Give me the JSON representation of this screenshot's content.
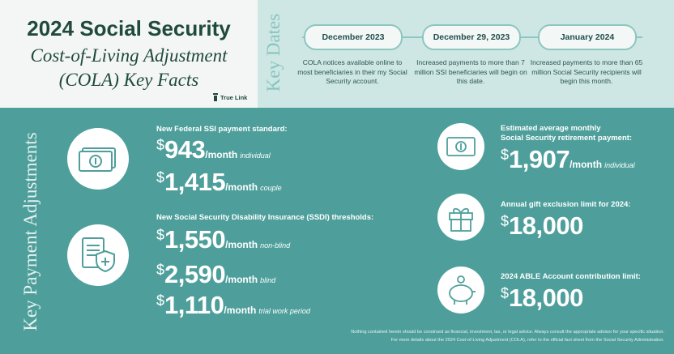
{
  "header": {
    "title": "2024 Social Security",
    "subtitle_line1": "Cost-of-Living Adjustment",
    "subtitle_line2": "(COLA) Key Facts",
    "brand": "True Link"
  },
  "key_dates": {
    "heading": "Key Dates",
    "items": [
      {
        "date": "December 2023",
        "text": "COLA notices available online to most beneficiaries in their my Social Security account."
      },
      {
        "date": "December 29, 2023",
        "text": "Increased payments to more than 7 million SSI beneficiaries will begin on this date."
      },
      {
        "date": "January 2024",
        "text": "Increased payments to more than 65 million Social Security recipients will begin this month."
      }
    ]
  },
  "payments": {
    "heading": "Key Payment Adjustments",
    "currency": "$",
    "ssi": {
      "label": "New Federal SSI payment standard:",
      "amounts": [
        {
          "value": "943",
          "unit": "/month",
          "qualifier": "individual"
        },
        {
          "value": "1,415",
          "unit": "/month",
          "qualifier": "couple"
        }
      ]
    },
    "ssdi": {
      "label": "New Social Security Disability Insurance (SSDI) thresholds:",
      "amounts": [
        {
          "value": "1,550",
          "unit": "/month",
          "qualifier": "non-blind"
        },
        {
          "value": "2,590",
          "unit": "/month",
          "qualifier": "blind"
        },
        {
          "value": "1,110",
          "unit": "/month",
          "qualifier": "trial work period"
        }
      ]
    },
    "retirement": {
      "label_line1": "Estimated average monthly",
      "label_line2": "Social Security retirement payment:",
      "value": "1,907",
      "unit": "/month",
      "qualifier": "individual"
    },
    "gift": {
      "label": "Annual gift exclusion limit for 2024:",
      "value": "18,000"
    },
    "able": {
      "label": "2024 ABLE Account contribution limit:",
      "value": "18,000"
    }
  },
  "footer": {
    "line1": "Nothing contained herein should be construed as financial, investment, tax, or legal advice. Always consult the appropriate advisor for your specific situation.",
    "line2": "For more details about the 2024 Cost-of-Living Adjustment (COLA), refer to the official fact sheet from the Social Security Administration."
  }
}
